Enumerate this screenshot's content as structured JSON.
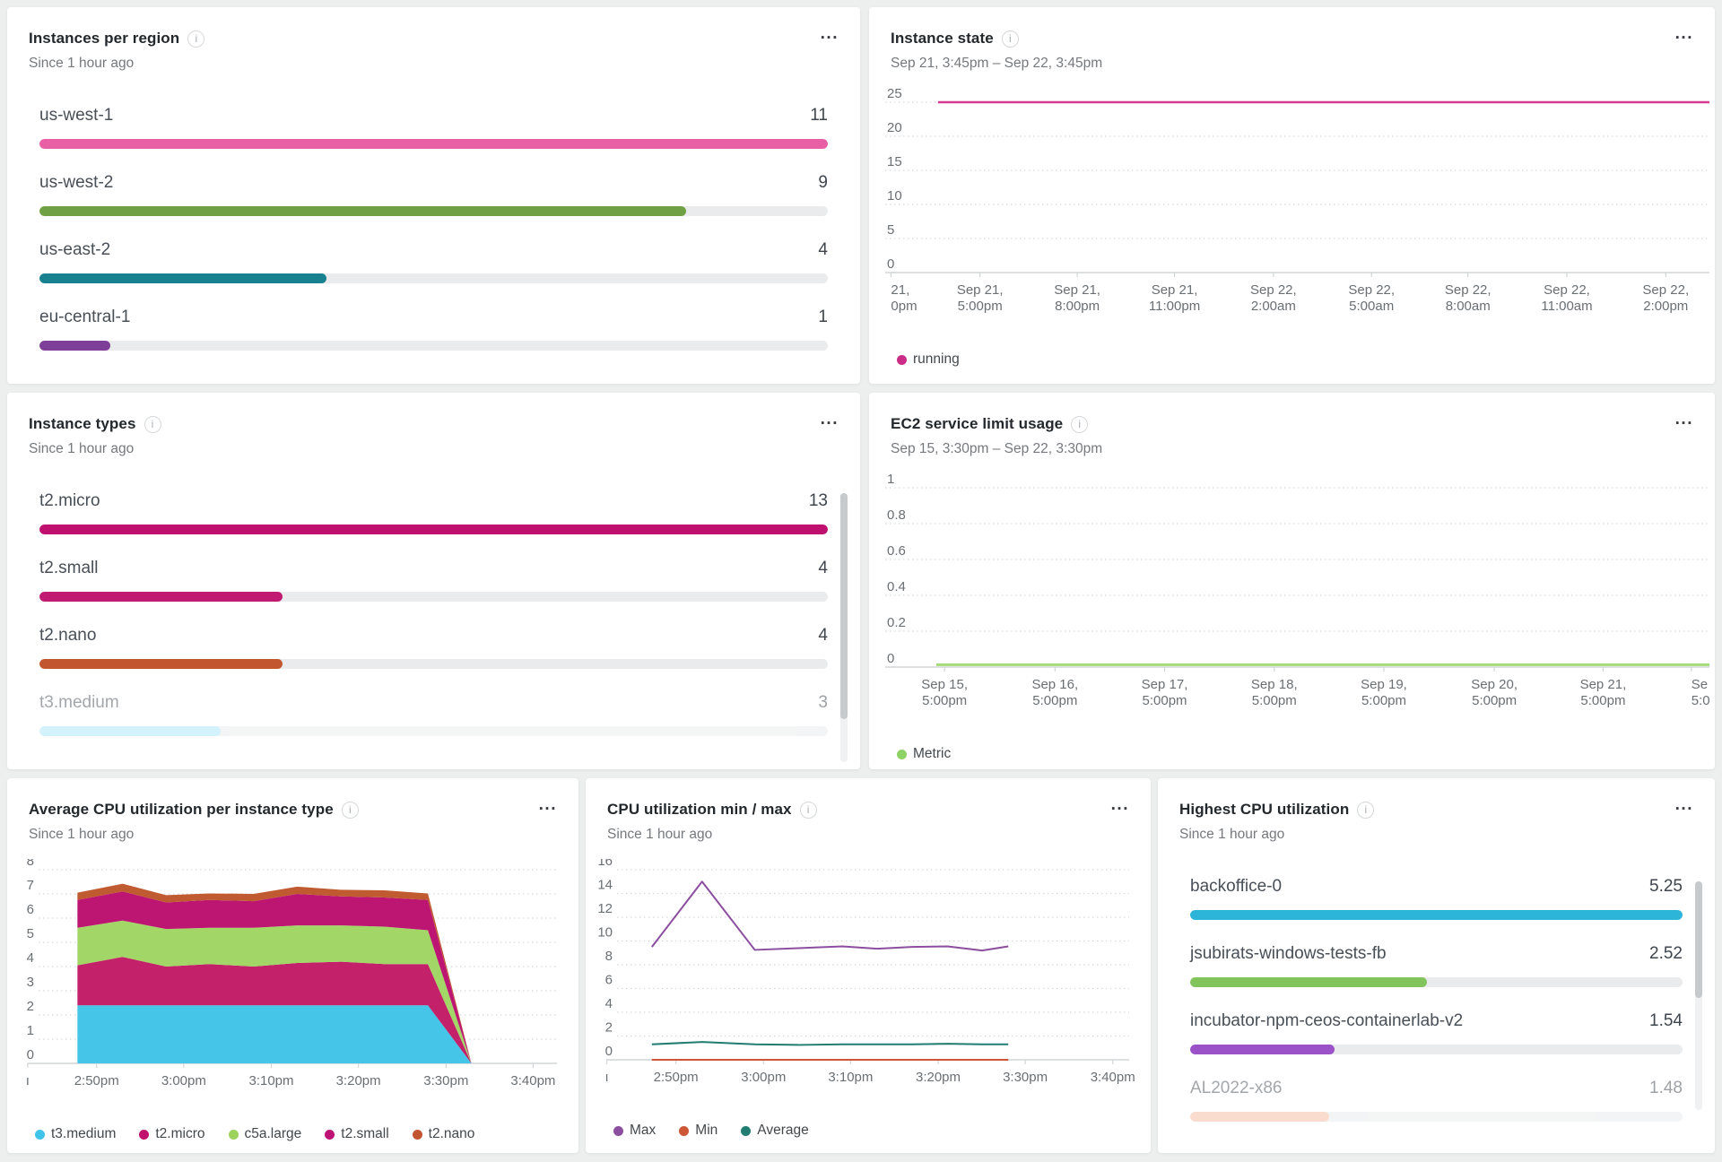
{
  "ui": {
    "menu_label": "...",
    "info_label": "i"
  },
  "panels": {
    "instances_per_region": {
      "title": "Instances per region",
      "subtitle": "Since 1 hour ago",
      "chart_data": {
        "type": "bar",
        "rows": [
          {
            "label": "us-west-1",
            "value": "11",
            "pct": 100,
            "color": "#e85fa6"
          },
          {
            "label": "us-west-2",
            "value": "9",
            "pct": 82,
            "color": "#6fa144"
          },
          {
            "label": "us-east-2",
            "value": "4",
            "pct": 36.4,
            "color": "#17818f"
          },
          {
            "label": "eu-central-1",
            "value": "1",
            "pct": 9,
            "color": "#7d3f98"
          }
        ]
      }
    },
    "instance_state": {
      "title": "Instance state",
      "subtitle": "Sep 21, 3:45pm – Sep 22, 3:45pm",
      "chart_data": {
        "type": "line",
        "ymax": 25,
        "yticks": [
          "25",
          "20",
          "15",
          "10",
          "5",
          "0"
        ],
        "xticks": [
          {
            "pos": 0.007,
            "align": "left",
            "lines": [
              "21,",
              "0pm"
            ]
          },
          {
            "pos": 0.115,
            "lines": [
              "Sep 21,",
              "5:00pm"
            ]
          },
          {
            "pos": 0.233,
            "lines": [
              "Sep 21,",
              "8:00pm"
            ]
          },
          {
            "pos": 0.351,
            "lines": [
              "Sep 21,",
              "11:00pm"
            ]
          },
          {
            "pos": 0.471,
            "lines": [
              "Sep 22,",
              "2:00am"
            ]
          },
          {
            "pos": 0.59,
            "lines": [
              "Sep 22,",
              "5:00am"
            ]
          },
          {
            "pos": 0.707,
            "lines": [
              "Sep 22,",
              "8:00am"
            ]
          },
          {
            "pos": 0.827,
            "lines": [
              "Sep 22,",
              "11:00am"
            ]
          },
          {
            "pos": 0.947,
            "lines": [
              "Sep 22,",
              "2:00pm"
            ]
          }
        ],
        "series": [
          {
            "name": "running",
            "color": "#d63a90",
            "width": 2.5,
            "points": [
              [
                0.064,
                25
              ],
              [
                1,
                25
              ]
            ]
          }
        ],
        "legend": [
          {
            "label": "running",
            "color": "#cb2c86"
          }
        ]
      }
    },
    "instance_types": {
      "title": "Instance types",
      "subtitle": "Since 1 hour ago",
      "scrollbar": true,
      "chart_data": {
        "type": "bar",
        "rows": [
          {
            "label": "t2.micro",
            "value": "13",
            "pct": 100,
            "color": "#bf1070"
          },
          {
            "label": "t2.small",
            "value": "4",
            "pct": 30.8,
            "color": "#c01a72"
          },
          {
            "label": "t2.nano",
            "value": "4",
            "pct": 30.8,
            "color": "#c2572f"
          },
          {
            "label": "t3.medium",
            "value": "3",
            "pct": 23,
            "color": "#a9e6f8",
            "faded": true
          }
        ]
      }
    },
    "ec2_service_limit_usage": {
      "title": "EC2 service limit usage",
      "subtitle": "Sep 15, 3:30pm – Sep 22, 3:30pm",
      "chart_data": {
        "type": "line",
        "ymax": 1,
        "yticks": [
          "1",
          "0.8",
          "0.6",
          "0.4",
          "0.2",
          "0"
        ],
        "xticks": [
          {
            "pos": 0.072,
            "lines": [
              "Sep 15,",
              "5:00pm"
            ]
          },
          {
            "pos": 0.206,
            "lines": [
              "Sep 16,",
              "5:00pm"
            ]
          },
          {
            "pos": 0.339,
            "lines": [
              "Sep 17,",
              "5:00pm"
            ]
          },
          {
            "pos": 0.472,
            "lines": [
              "Sep 18,",
              "5:00pm"
            ]
          },
          {
            "pos": 0.605,
            "lines": [
              "Sep 19,",
              "5:00pm"
            ]
          },
          {
            "pos": 0.739,
            "lines": [
              "Sep 20,",
              "5:00pm"
            ]
          },
          {
            "pos": 0.871,
            "lines": [
              "Sep 21,",
              "5:00pm"
            ]
          },
          {
            "pos": 0.978,
            "align": "left",
            "lines": [
              "Se",
              "5:0"
            ]
          }
        ],
        "series": [
          {
            "name": "Metric",
            "color": "#a7db78",
            "width": 3,
            "points": [
              [
                0.062,
                0.013
              ],
              [
                1,
                0.013
              ]
            ]
          }
        ],
        "legend": [
          {
            "label": "Metric",
            "color": "#8ed265"
          }
        ]
      }
    },
    "avg_cpu_per_instance_type": {
      "title": "Average CPU utilization per instance type",
      "subtitle": "Since 1 hour ago",
      "chart_data": {
        "type": "area",
        "ymax": 8,
        "yticks": [
          "8",
          "7",
          "6",
          "5",
          "4",
          "3",
          "2",
          "1",
          "0"
        ],
        "xticks": [
          {
            "pos": -0.021,
            "lines": [
              "ı"
            ]
          },
          {
            "pos": 0.112,
            "lines": [
              "2:50pm"
            ]
          },
          {
            "pos": 0.28,
            "lines": [
              "3:00pm"
            ]
          },
          {
            "pos": 0.449,
            "lines": [
              "3:10pm"
            ]
          },
          {
            "pos": 0.617,
            "lines": [
              "3:20pm"
            ]
          },
          {
            "pos": 0.786,
            "lines": [
              "3:30pm"
            ]
          },
          {
            "pos": 0.954,
            "lines": [
              "3:40pm"
            ]
          }
        ],
        "stack": {
          "x": [
            0.075,
            0.162,
            0.246,
            0.33,
            0.415,
            0.499,
            0.583,
            0.667,
            0.751,
            0.835
          ],
          "series": [
            {
              "name": "t3.medium",
              "color": "#45c6e9",
              "values": [
                2.4,
                2.4,
                2.4,
                2.4,
                2.4,
                2.4,
                2.4,
                2.4,
                2.4,
                0
              ]
            },
            {
              "name": "t2.micro",
              "color": "#c32169",
              "values": [
                1.65,
                2.0,
                1.6,
                1.7,
                1.6,
                1.75,
                1.8,
                1.7,
                1.7,
                0
              ]
            },
            {
              "name": "c5a.large",
              "color": "#a2d667",
              "values": [
                1.55,
                1.5,
                1.55,
                1.5,
                1.6,
                1.55,
                1.5,
                1.55,
                1.4,
                0
              ]
            },
            {
              "name": "t2.small",
              "color": "#bd1572",
              "values": [
                1.15,
                1.2,
                1.1,
                1.15,
                1.1,
                1.3,
                1.2,
                1.2,
                1.25,
                0
              ]
            },
            {
              "name": "t2.nano",
              "color": "#c05a30",
              "values": [
                0.3,
                0.32,
                0.3,
                0.27,
                0.3,
                0.3,
                0.27,
                0.3,
                0.27,
                0
              ]
            }
          ]
        },
        "legend": [
          {
            "label": "t3.medium",
            "color": "#3fc3e8"
          },
          {
            "label": "t2.micro",
            "color": "#c0116e"
          },
          {
            "label": "c5a.large",
            "color": "#9ed25f"
          },
          {
            "label": "t2.small",
            "color": "#bd1374"
          },
          {
            "label": "t2.nano",
            "color": "#c25531"
          }
        ]
      }
    },
    "cpu_min_max": {
      "title": "CPU utilization min / max",
      "subtitle": "Since 1 hour ago",
      "chart_data": {
        "type": "line",
        "ymax": 16,
        "yticks": [
          "16",
          "14",
          "12",
          "10",
          "8",
          "6",
          "4",
          "2",
          "0"
        ],
        "xticks": [
          {
            "pos": -0.02,
            "lines": [
              "ı"
            ]
          },
          {
            "pos": 0.115,
            "lines": [
              "2:50pm"
            ]
          },
          {
            "pos": 0.286,
            "lines": [
              "3:00pm"
            ]
          },
          {
            "pos": 0.456,
            "lines": [
              "3:10pm"
            ]
          },
          {
            "pos": 0.627,
            "lines": [
              "3:20pm"
            ]
          },
          {
            "pos": 0.797,
            "lines": [
              "3:30pm"
            ]
          },
          {
            "pos": 0.968,
            "lines": [
              "3:40pm"
            ]
          }
        ],
        "series": [
          {
            "name": "Max",
            "color": "#8c4e9f",
            "width": 2,
            "points": [
              [
                0.068,
                9.5
              ],
              [
                0.166,
                15
              ],
              [
                0.269,
                9.25
              ],
              [
                0.354,
                9.4
              ],
              [
                0.44,
                9.55
              ],
              [
                0.508,
                9.35
              ],
              [
                0.576,
                9.5
              ],
              [
                0.645,
                9.55
              ],
              [
                0.713,
                9.2
              ],
              [
                0.764,
                9.55
              ]
            ]
          },
          {
            "name": "Min",
            "color": "#cd5637",
            "width": 2,
            "points": [
              [
                0.068,
                0
              ],
              [
                0.764,
                0
              ]
            ]
          },
          {
            "name": "Average",
            "color": "#217c72",
            "width": 2,
            "points": [
              [
                0.068,
                1.3
              ],
              [
                0.166,
                1.5
              ],
              [
                0.269,
                1.3
              ],
              [
                0.354,
                1.25
              ],
              [
                0.44,
                1.3
              ],
              [
                0.508,
                1.3
              ],
              [
                0.576,
                1.3
              ],
              [
                0.645,
                1.35
              ],
              [
                0.713,
                1.3
              ],
              [
                0.764,
                1.3
              ]
            ]
          }
        ],
        "legend": [
          {
            "label": "Max",
            "color": "#8c4e9f"
          },
          {
            "label": "Min",
            "color": "#cd5637"
          },
          {
            "label": "Average",
            "color": "#217c72"
          }
        ]
      }
    },
    "highest_cpu_utilization": {
      "title": "Highest CPU utilization",
      "subtitle": "Since 1 hour ago",
      "scrollbar": true,
      "chart_data": {
        "type": "bar",
        "rows": [
          {
            "label": "backoffice-0",
            "value": "5.25",
            "pct": 100,
            "color": "#2cb5d9"
          },
          {
            "label": "jsubirats-windows-tests-fb",
            "value": "2.52",
            "pct": 48,
            "color": "#82c45c"
          },
          {
            "label": "incubator-npm-ceos-containerlab-v2",
            "value": "1.54",
            "pct": 29.3,
            "color": "#9b51c8"
          },
          {
            "label": "AL2022-x86",
            "value": "1.48",
            "pct": 28.2,
            "color": "#f7bb9e",
            "faded": true
          }
        ]
      }
    }
  }
}
